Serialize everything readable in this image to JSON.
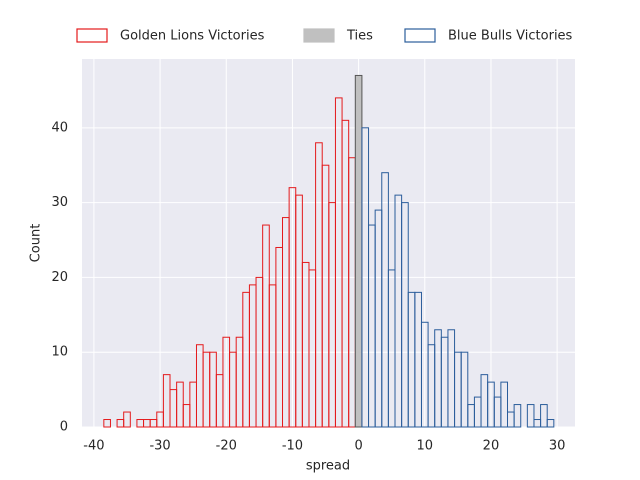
{
  "chart_data": {
    "type": "histogram",
    "xlabel": "spread",
    "ylabel": "Count",
    "xlim": [
      -41.8,
      32.7
    ],
    "ylim": [
      0,
      49.2
    ],
    "xticks": [
      -40,
      -30,
      -20,
      -10,
      0,
      10,
      20,
      30
    ],
    "yticks": [
      0,
      10,
      20,
      30,
      40
    ],
    "grid": true,
    "legend": "top",
    "series": [
      {
        "name": "Golden Lions Victories",
        "color": "#e41a1c",
        "filled": false,
        "bins": [
          -39.5,
          -38.5,
          -37.5,
          -36.5,
          -35.5,
          -34.5,
          -33.5,
          -32.5,
          -31.5,
          -30.5,
          -29.5,
          -28.5,
          -27.5,
          -26.5,
          -25.5,
          -24.5,
          -23.5,
          -22.5,
          -21.5,
          -20.5,
          -19.5,
          -18.5,
          -17.5,
          -16.5,
          -15.5,
          -14.5,
          -13.5,
          -12.5,
          -11.5,
          -10.5,
          -9.5,
          -8.5,
          -7.5,
          -6.5,
          -5.5,
          -4.5,
          -3.5,
          -2.5,
          -1.5,
          -0.5
        ],
        "values": [
          0,
          1,
          0,
          1,
          2,
          0,
          1,
          1,
          1,
          2,
          7,
          5,
          6,
          3,
          6,
          11,
          10,
          10,
          7,
          12,
          10,
          12,
          18,
          19,
          20,
          27,
          19,
          24,
          28,
          32,
          31,
          22,
          21,
          38,
          35,
          30,
          44,
          41,
          36
        ]
      },
      {
        "name": "Ties",
        "color": "#c0c0c0",
        "filled": true,
        "bins": [
          -0.5,
          0.5
        ],
        "values": [
          47
        ]
      },
      {
        "name": "Blue Bulls Victories",
        "color": "#2b5d9b",
        "filled": false,
        "bins": [
          0.5,
          1.5,
          2.5,
          3.5,
          4.5,
          5.5,
          6.5,
          7.5,
          8.5,
          9.5,
          10.5,
          11.5,
          12.5,
          13.5,
          14.5,
          15.5,
          16.5,
          17.5,
          18.5,
          19.5,
          20.5,
          21.5,
          22.5,
          23.5,
          24.5,
          25.5,
          26.5,
          27.5,
          28.5,
          29.5
        ],
        "values": [
          40,
          27,
          29,
          34,
          21,
          31,
          30,
          18,
          18,
          14,
          11,
          13,
          12,
          13,
          10,
          10,
          3,
          4,
          7,
          6,
          4,
          6,
          2,
          3,
          0,
          3,
          1,
          3,
          1
        ]
      }
    ]
  }
}
